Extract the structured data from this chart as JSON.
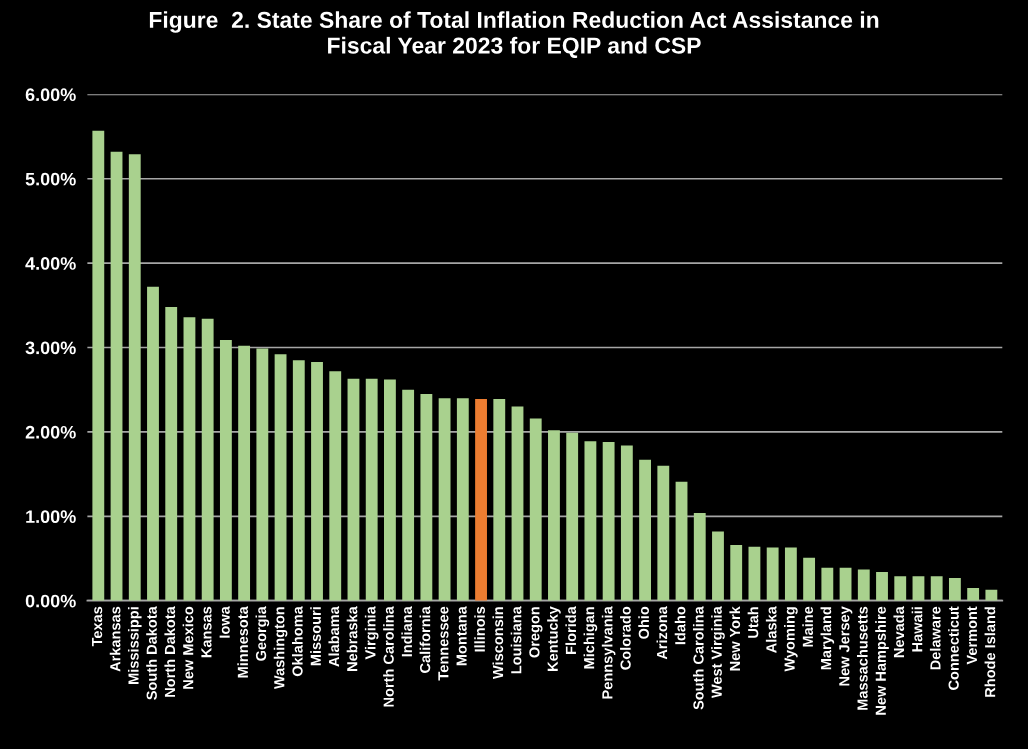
{
  "chart_data": {
    "type": "bar",
    "title": "Figure  2. State Share of Total Inflation Reduction Act Assistance in\nFiscal Year 2023 for EQIP and CSP",
    "categories": [
      "Texas",
      "Arkansas",
      "Mississippi",
      "South Dakota",
      "North Dakota",
      "New Mexico",
      "Kansas",
      "Iowa",
      "Minnesota",
      "Georgia",
      "Washington",
      "Oklahoma",
      "Missouri",
      "Alabama",
      "Nebraska",
      "Virginia",
      "North Carolina",
      "Indiana",
      "California",
      "Tennessee",
      "Montana",
      "Illinois",
      "Wisconsin",
      "Louisiana",
      "Oregon",
      "Kentucky",
      "Florida",
      "Michigan",
      "Pennsylvania",
      "Colorado",
      "Ohio",
      "Arizona",
      "Idaho",
      "South Carolina",
      "West Virginia",
      "New York",
      "Utah",
      "Alaska",
      "Wyoming",
      "Maine",
      "Maryland",
      "New Jersey",
      "Massachusetts",
      "New Hampshire",
      "Nevada",
      "Hawaii",
      "Delaware",
      "Connecticut",
      "Vermont",
      "Rhode Island"
    ],
    "values": [
      5.57,
      5.32,
      5.29,
      3.72,
      3.48,
      3.36,
      3.34,
      3.09,
      3.02,
      2.99,
      2.92,
      2.85,
      2.83,
      2.72,
      2.63,
      2.63,
      2.62,
      2.5,
      2.45,
      2.4,
      2.4,
      2.39,
      2.39,
      2.3,
      2.16,
      2.02,
      1.99,
      1.89,
      1.88,
      1.84,
      1.67,
      1.6,
      1.41,
      1.04,
      0.82,
      0.66,
      0.64,
      0.63,
      0.63,
      0.51,
      0.39,
      0.39,
      0.37,
      0.34,
      0.29,
      0.29,
      0.29,
      0.27,
      0.15,
      0.13
    ],
    "colors": [
      "#a9d18e",
      "#a9d18e",
      "#a9d18e",
      "#a9d18e",
      "#a9d18e",
      "#a9d18e",
      "#a9d18e",
      "#a9d18e",
      "#a9d18e",
      "#a9d18e",
      "#a9d18e",
      "#a9d18e",
      "#a9d18e",
      "#a9d18e",
      "#a9d18e",
      "#a9d18e",
      "#a9d18e",
      "#a9d18e",
      "#a9d18e",
      "#a9d18e",
      "#a9d18e",
      "#ed7d31",
      "#a9d18e",
      "#a9d18e",
      "#a9d18e",
      "#a9d18e",
      "#a9d18e",
      "#a9d18e",
      "#a9d18e",
      "#a9d18e",
      "#a9d18e",
      "#a9d18e",
      "#a9d18e",
      "#a9d18e",
      "#a9d18e",
      "#a9d18e",
      "#a9d18e",
      "#a9d18e",
      "#a9d18e",
      "#a9d18e",
      "#a9d18e",
      "#a9d18e",
      "#a9d18e",
      "#a9d18e",
      "#a9d18e",
      "#a9d18e",
      "#a9d18e",
      "#a9d18e",
      "#a9d18e",
      "#a9d18e"
    ],
    "ylim": [
      0,
      6
    ],
    "yticks": [
      {
        "value": 0,
        "label": "0.00%"
      },
      {
        "value": 1,
        "label": "1.00%"
      },
      {
        "value": 2,
        "label": "2.00%"
      },
      {
        "value": 3,
        "label": "3.00%"
      },
      {
        "value": 4,
        "label": "4.00%"
      },
      {
        "value": 5,
        "label": "5.00%"
      },
      {
        "value": 6,
        "label": "6.00%"
      }
    ],
    "grid": "y",
    "legend": false
  }
}
